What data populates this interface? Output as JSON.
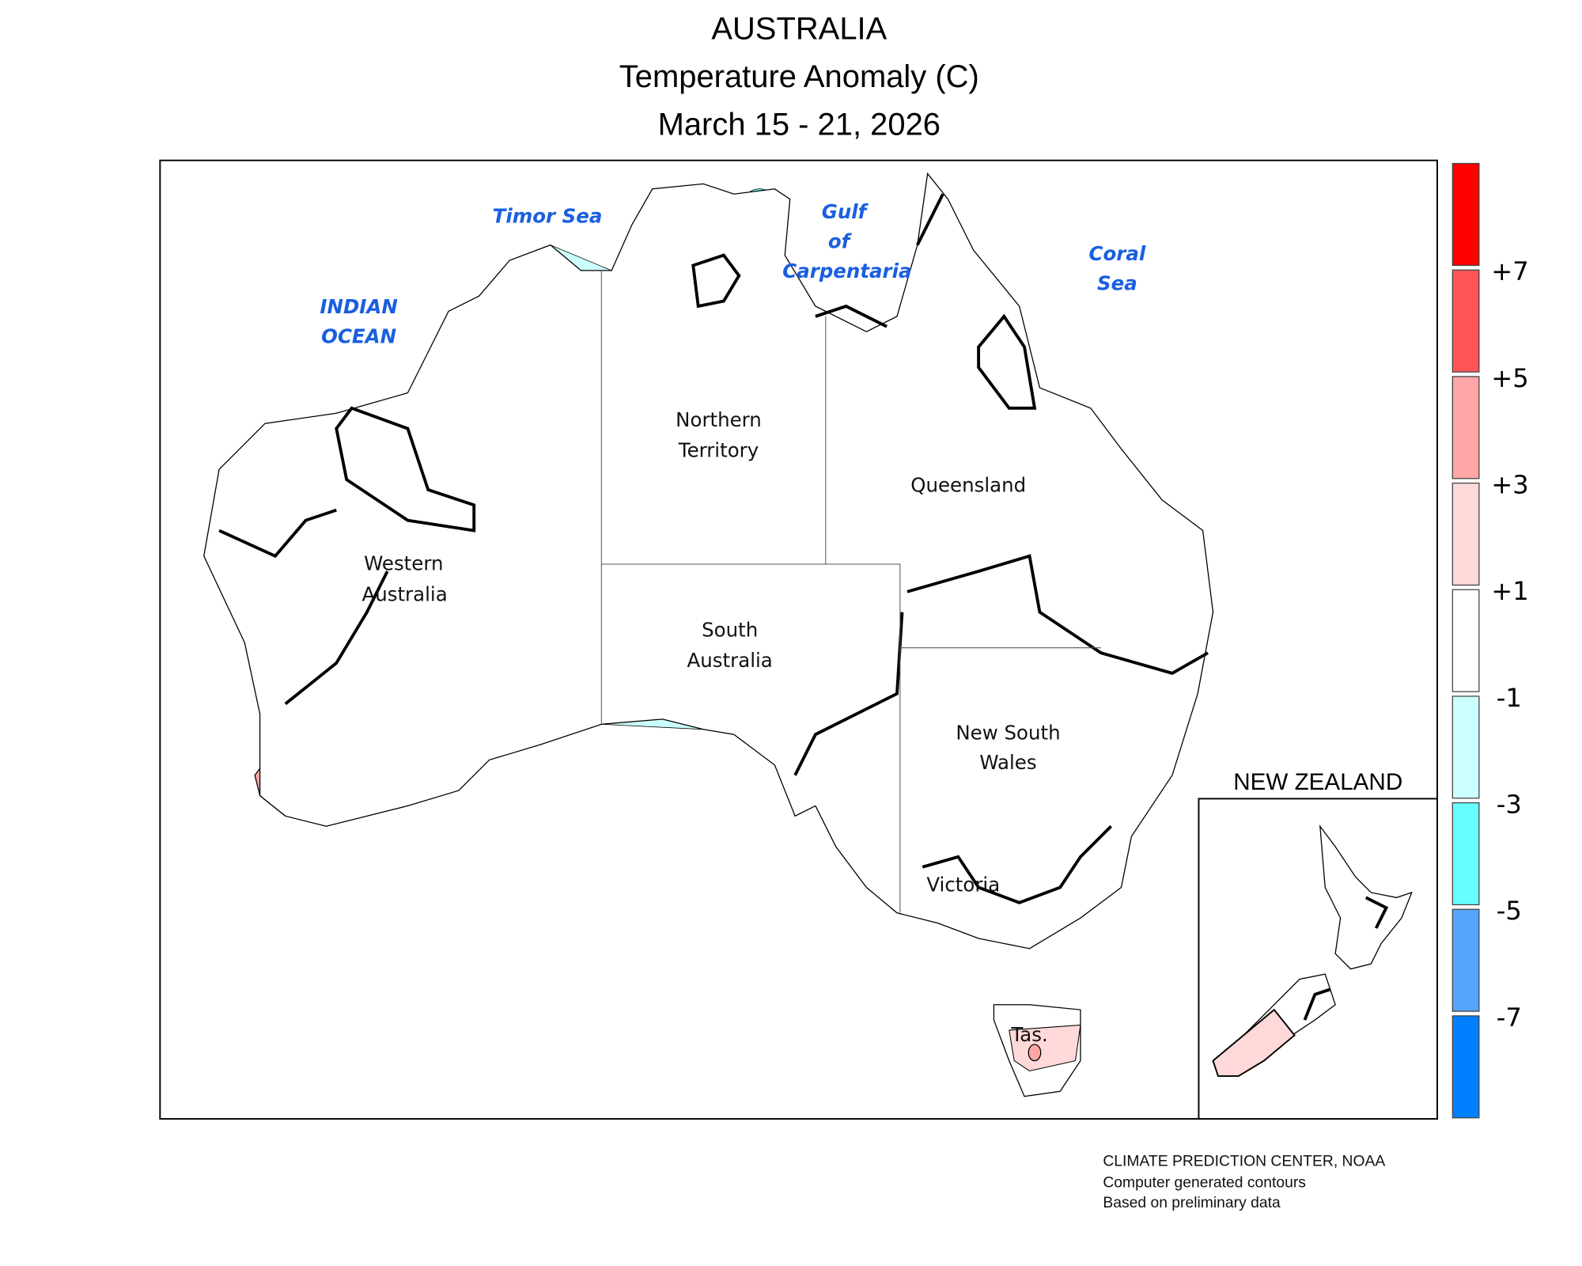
{
  "title": {
    "line1": "AUSTRALIA",
    "line2": "Temperature Anomaly (C)",
    "line3": "March 15 - 21, 2026"
  },
  "oceans": {
    "timor": "Timor Sea",
    "gulf_1": "Gulf",
    "gulf_2": "of",
    "gulf_3": "Carpentaria",
    "coral_1": "Coral",
    "coral_2": "Sea",
    "indian_1": "INDIAN",
    "indian_2": "OCEAN"
  },
  "states": {
    "wa_1": "Western",
    "wa_2": "Australia",
    "nt_1": "Northern",
    "nt_2": "Territory",
    "qld": "Queensland",
    "sa_1": "South",
    "sa_2": "Australia",
    "nsw_1": "New South",
    "nsw_2": "Wales",
    "vic": "Victoria",
    "tas": "Tas."
  },
  "inset": {
    "title": "NEW ZEALAND"
  },
  "legend": {
    "colors": [
      "#ff0000",
      "#ff5555",
      "#ffa5a5",
      "#ffd9d9",
      "#ffffff",
      "#ccffff",
      "#66ffff",
      "#55a5ff",
      "#0080ff"
    ],
    "labels": [
      "+7",
      "+5",
      "+3",
      "+1",
      "-1",
      "-3",
      "-5",
      "-7"
    ]
  },
  "footer": {
    "line1": "CLIMATE PREDICTION CENTER, NOAA",
    "line2": "Computer generated contours",
    "line3": "Based on preliminary data"
  }
}
